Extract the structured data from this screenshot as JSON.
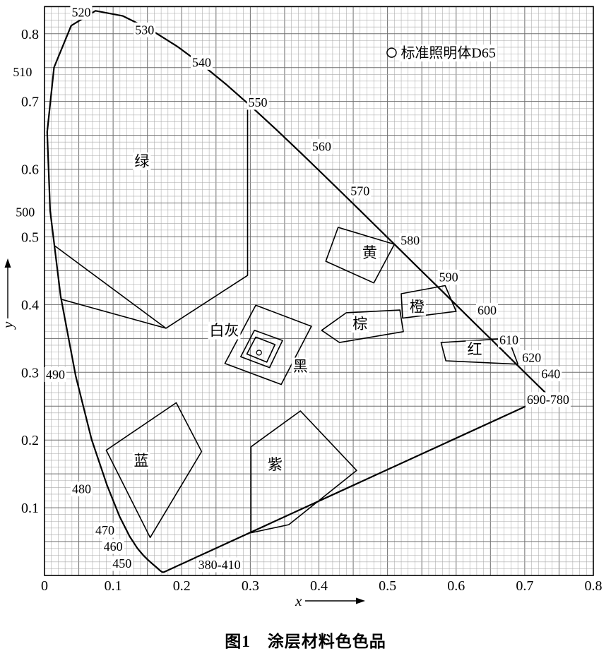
{
  "figure": {
    "caption": "图1　涂层材料色色品"
  },
  "chart_data": {
    "type": "line",
    "subtype": "CIE 1931 xy chromaticity diagram",
    "title": "图1 涂层材料色色品",
    "xlabel": "x",
    "ylabel": "y",
    "xlim": [
      0,
      0.8
    ],
    "ylim": [
      0,
      0.84
    ],
    "grid": {
      "on": true,
      "minor_step": 0.01,
      "major_step": 0.05
    },
    "x_ticks": [
      {
        "v": 0,
        "label": "0"
      },
      {
        "v": 0.1,
        "label": "0.1"
      },
      {
        "v": 0.2,
        "label": "0.2"
      },
      {
        "v": 0.3,
        "label": "0.3"
      },
      {
        "v": 0.4,
        "label": "0.4"
      },
      {
        "v": 0.5,
        "label": "0.5"
      },
      {
        "v": 0.6,
        "label": "0.6"
      },
      {
        "v": 0.7,
        "label": "0.7"
      },
      {
        "v": 0.8,
        "label": "0.8"
      }
    ],
    "y_ticks": [
      {
        "v": 0.1,
        "label": "0.1"
      },
      {
        "v": 0.2,
        "label": "0.2"
      },
      {
        "v": 0.3,
        "label": "0.3"
      },
      {
        "v": 0.4,
        "label": "0.4"
      },
      {
        "v": 0.5,
        "label": "0.5"
      },
      {
        "v": 0.6,
        "label": "0.6"
      },
      {
        "v": 0.7,
        "label": "0.7"
      },
      {
        "v": 0.8,
        "label": "0.8"
      }
    ],
    "legend": {
      "marker": "circle-outline",
      "label": "标准照明体D65",
      "position": "top-right",
      "x": 0.506,
      "y": 0.772
    },
    "illuminant_d65": {
      "x": 0.3127,
      "y": 0.329
    },
    "spectral_locus": [
      [
        0.1741,
        0.005
      ],
      [
        0.1726,
        0.0048
      ],
      [
        0.1714,
        0.0051
      ],
      [
        0.1689,
        0.0069
      ],
      [
        0.1644,
        0.0109
      ],
      [
        0.1566,
        0.0177
      ],
      [
        0.151,
        0.0227
      ],
      [
        0.144,
        0.0297
      ],
      [
        0.1355,
        0.0399
      ],
      [
        0.1241,
        0.0578
      ],
      [
        0.1096,
        0.0868
      ],
      [
        0.0913,
        0.1327
      ],
      [
        0.0687,
        0.2007
      ],
      [
        0.0454,
        0.295
      ],
      [
        0.0235,
        0.4127
      ],
      [
        0.0082,
        0.5384
      ],
      [
        0.0039,
        0.6548
      ],
      [
        0.0139,
        0.7502
      ],
      [
        0.0389,
        0.812
      ],
      [
        0.0743,
        0.8338
      ],
      [
        0.1142,
        0.8262
      ],
      [
        0.1547,
        0.8059
      ],
      [
        0.1929,
        0.7816
      ],
      [
        0.2296,
        0.7543
      ],
      [
        0.2658,
        0.7243
      ],
      [
        0.3016,
        0.6923
      ],
      [
        0.3373,
        0.6589
      ],
      [
        0.3731,
        0.6245
      ],
      [
        0.4087,
        0.5896
      ],
      [
        0.4441,
        0.5547
      ],
      [
        0.4788,
        0.5202
      ],
      [
        0.5125,
        0.4866
      ],
      [
        0.5448,
        0.4544
      ],
      [
        0.5752,
        0.4242
      ],
      [
        0.6029,
        0.3965
      ],
      [
        0.627,
        0.3725
      ],
      [
        0.6482,
        0.3514
      ],
      [
        0.6658,
        0.334
      ],
      [
        0.6801,
        0.3197
      ],
      [
        0.6915,
        0.3083
      ],
      [
        0.7079,
        0.292
      ],
      [
        0.719,
        0.2809
      ],
      [
        0.726,
        0.274
      ],
      [
        0.7347,
        0.2653
      ]
    ],
    "wavelength_labels": [
      {
        "text": "520",
        "x": 0.0535,
        "y": 0.832
      },
      {
        "text": "530",
        "x": 0.146,
        "y": 0.806
      },
      {
        "text": "540",
        "x": 0.229,
        "y": 0.758
      },
      {
        "text": "550",
        "x": 0.311,
        "y": 0.699
      },
      {
        "text": "560",
        "x": 0.404,
        "y": 0.634
      },
      {
        "text": "570",
        "x": 0.46,
        "y": 0.568
      },
      {
        "text": "580",
        "x": 0.533,
        "y": 0.495
      },
      {
        "text": "590",
        "x": 0.589,
        "y": 0.441
      },
      {
        "text": "600",
        "x": 0.645,
        "y": 0.392
      },
      {
        "text": "610",
        "x": 0.677,
        "y": 0.348
      },
      {
        "text": "620",
        "x": 0.71,
        "y": 0.322
      },
      {
        "text": "640",
        "x": 0.738,
        "y": 0.298
      },
      {
        "text": "690-780",
        "x": 0.734,
        "y": 0.26
      },
      {
        "text": "510",
        "x": -0.032,
        "y": 0.744
      },
      {
        "text": "500",
        "x": -0.028,
        "y": 0.537
      },
      {
        "text": "490",
        "x": 0.016,
        "y": 0.297
      },
      {
        "text": "480",
        "x": 0.054,
        "y": 0.128
      },
      {
        "text": "470",
        "x": 0.088,
        "y": 0.067
      },
      {
        "text": "460",
        "x": 0.1,
        "y": 0.043
      },
      {
        "text": "450",
        "x": 0.113,
        "y": 0.018
      },
      {
        "text": "380-410",
        "x": 0.255,
        "y": 0.016
      }
    ],
    "boundary_lines": [
      {
        "id": "green-lower",
        "points": [
          [
            0.0238,
            0.408
          ],
          [
            0.177,
            0.365
          ]
        ]
      }
    ],
    "regions": [
      {
        "id": "green",
        "label": "绿",
        "label_x": 0.142,
        "label_y": 0.612,
        "closed": false,
        "points": [
          [
            0.0145,
            0.487
          ],
          [
            0.177,
            0.365
          ],
          [
            0.296,
            0.443
          ],
          [
            0.296,
            0.697
          ]
        ]
      },
      {
        "id": "yellow",
        "label": "黄",
        "label_x": 0.474,
        "label_y": 0.477,
        "closed": true,
        "points": [
          [
            0.428,
            0.514
          ],
          [
            0.51,
            0.489
          ],
          [
            0.48,
            0.432
          ],
          [
            0.41,
            0.464
          ]
        ]
      },
      {
        "id": "orange",
        "label": "橙",
        "label_x": 0.543,
        "label_y": 0.397,
        "closed": true,
        "points": [
          [
            0.52,
            0.416
          ],
          [
            0.584,
            0.428
          ],
          [
            0.6,
            0.39
          ],
          [
            0.522,
            0.38
          ]
        ]
      },
      {
        "id": "red",
        "label": "红",
        "label_x": 0.627,
        "label_y": 0.334,
        "closed": true,
        "points": [
          [
            0.578,
            0.344
          ],
          [
            0.676,
            0.35
          ],
          [
            0.69,
            0.312
          ],
          [
            0.585,
            0.317
          ]
        ]
      },
      {
        "id": "brown",
        "label": "棕",
        "label_x": 0.46,
        "label_y": 0.372,
        "closed": true,
        "points": [
          [
            0.404,
            0.362
          ],
          [
            0.44,
            0.388
          ],
          [
            0.518,
            0.392
          ],
          [
            0.523,
            0.36
          ],
          [
            0.43,
            0.344
          ]
        ]
      },
      {
        "id": "black",
        "label": "黑",
        "label_x": 0.373,
        "label_y": 0.309,
        "closed": true,
        "points": [
          [
            0.263,
            0.313
          ],
          [
            0.308,
            0.399
          ],
          [
            0.389,
            0.368
          ],
          [
            0.345,
            0.282
          ]
        ]
      },
      {
        "id": "white-gray-outer",
        "label": "白灰",
        "label_x": 0.262,
        "label_y": 0.362,
        "closed": true,
        "points": [
          [
            0.286,
            0.323
          ],
          [
            0.306,
            0.362
          ],
          [
            0.347,
            0.347
          ],
          [
            0.328,
            0.307
          ]
        ]
      },
      {
        "id": "white-gray-inner",
        "label": "",
        "label_x": 0,
        "label_y": 0,
        "closed": true,
        "points": [
          [
            0.295,
            0.327
          ],
          [
            0.308,
            0.352
          ],
          [
            0.336,
            0.341
          ],
          [
            0.324,
            0.315
          ]
        ]
      },
      {
        "id": "blue",
        "label": "蓝",
        "label_x": 0.141,
        "label_y": 0.17,
        "closed": true,
        "points": [
          [
            0.09,
            0.185
          ],
          [
            0.192,
            0.255
          ],
          [
            0.229,
            0.183
          ],
          [
            0.154,
            0.056
          ]
        ]
      },
      {
        "id": "purple",
        "label": "紫",
        "label_x": 0.336,
        "label_y": 0.164,
        "closed": true,
        "points": [
          [
            0.301,
            0.19
          ],
          [
            0.373,
            0.243
          ],
          [
            0.455,
            0.155
          ],
          [
            0.356,
            0.075
          ],
          [
            0.301,
            0.063
          ]
        ]
      }
    ]
  }
}
